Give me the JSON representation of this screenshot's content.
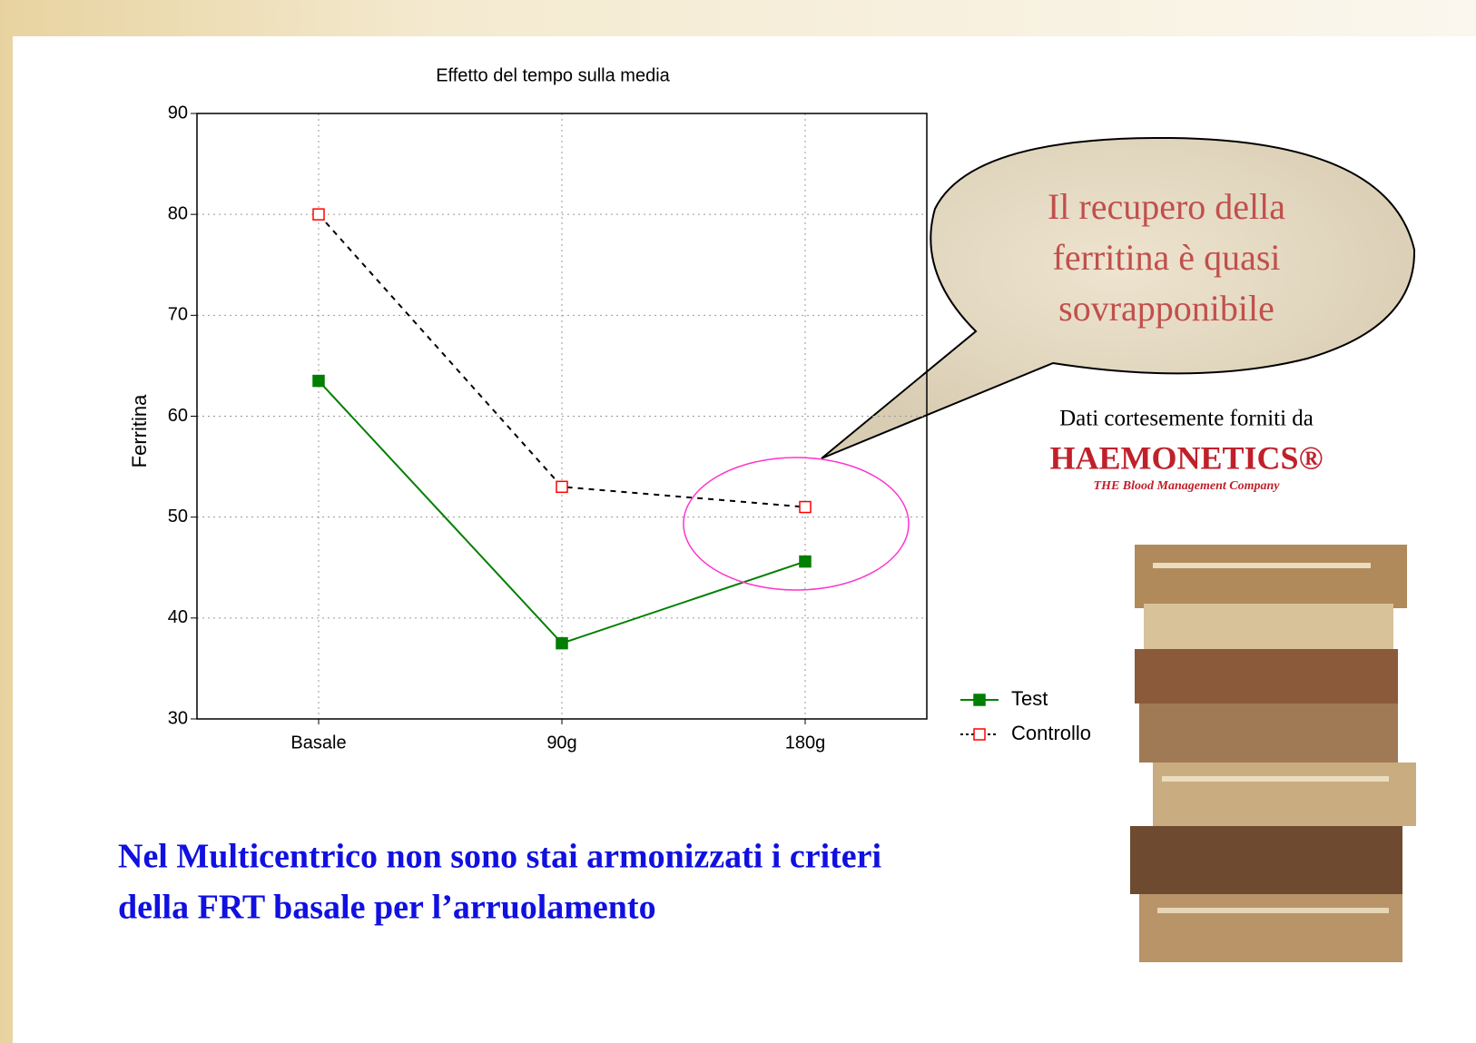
{
  "chart_data": {
    "type": "line",
    "title": "Effetto del tempo sulla media",
    "y_label": "Ferritina",
    "categories": [
      "Basale",
      "90g",
      "180g"
    ],
    "series": [
      {
        "name": "Test",
        "color": "#007f00",
        "line_color": "#007f00",
        "filled": true,
        "dashed": false,
        "values": [
          63.5,
          37.5,
          45.6
        ]
      },
      {
        "name": "Controllo",
        "color": "#ff0000",
        "line_color": "#000000",
        "filled": false,
        "dashed": true,
        "values": [
          80,
          53,
          51
        ]
      }
    ],
    "ylim": [
      30,
      90
    ],
    "yticks": [
      30,
      40,
      50,
      60,
      70,
      80,
      90
    ],
    "grid": true,
    "legend": "right"
  },
  "callout": {
    "lines": [
      "Il recupero della",
      "ferritina è quasi",
      "sovrapponibile"
    ]
  },
  "credit": {
    "text": "Dati cortesemente forniti da",
    "logo": "HAEMONETICS®",
    "tagline": "THE Blood Management Company"
  },
  "footer": {
    "lines": [
      "Nel Multicentrico non sono stai armonizzati i criteri",
      "della FRT basale per l’arruolamento"
    ]
  }
}
